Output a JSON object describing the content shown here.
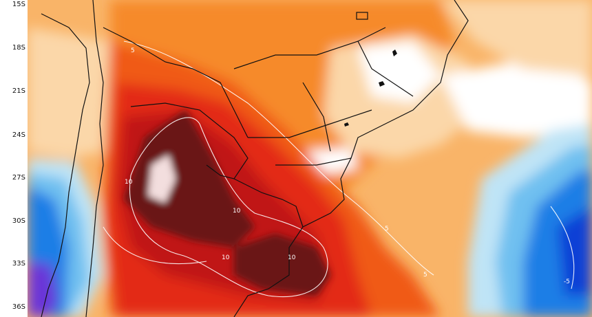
{
  "map": {
    "latitude_labels": [
      "15S",
      "18S",
      "21S",
      "24S",
      "27S",
      "30S",
      "33S",
      "36S"
    ],
    "contour_labels": [
      "5",
      "10",
      "10",
      "10",
      "10",
      "5",
      "5",
      "-5"
    ],
    "colors": {
      "dark_maroon": "#6b1212",
      "pale_pink_peak": "#f3dede",
      "deep_red": "#c01818",
      "red": "#e32a12",
      "orange_red": "#f05a14",
      "orange": "#f68a2a",
      "light_orange": "#f9b468",
      "pale_orange": "#fbd7a9",
      "white": "#ffffff",
      "pale_blue": "#bfe4f6",
      "light_blue": "#6fc0f0",
      "blue": "#1f7ee6",
      "deep_blue": "#0b3fd6",
      "purple": "#6a35d8",
      "border_line": "#111111",
      "contour_line": "#ffffff"
    }
  }
}
